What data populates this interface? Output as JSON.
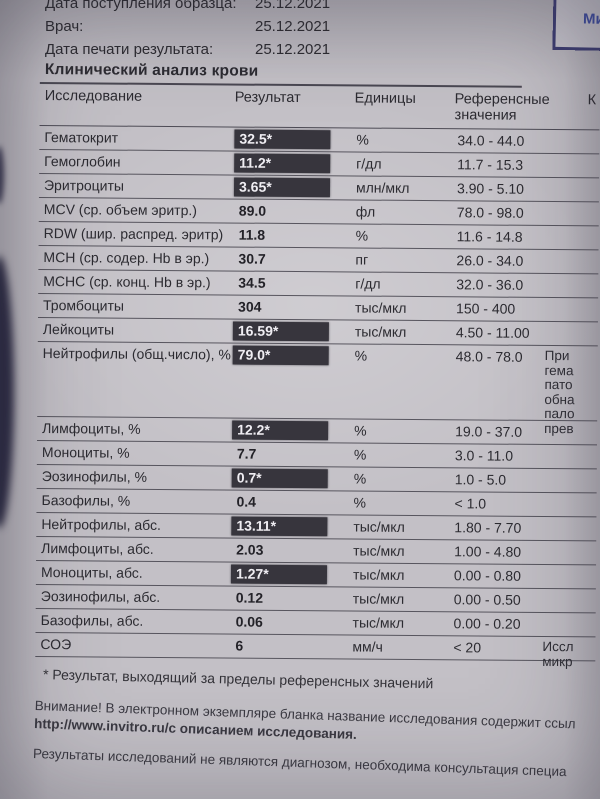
{
  "header": {
    "meta": [
      {
        "label": "Дата поступления образца:",
        "value": "25.12.2021"
      },
      {
        "label": "Врач:",
        "value": "25.12.2021"
      },
      {
        "label": "Дата печати результата:",
        "value": "25.12.2021"
      }
    ],
    "stamp_text": "Ми"
  },
  "report": {
    "title": "Клинический анализ крови",
    "columns": [
      "Исследование",
      "Результат",
      "Единицы",
      "Референсные значения",
      "К"
    ],
    "rows": [
      {
        "name": "Гематокрит",
        "result": "32.5*",
        "flagged": true,
        "units": "%",
        "ref": "34.0 - 44.0"
      },
      {
        "name": "Гемоглобин",
        "result": "11.2*",
        "flagged": true,
        "units": "г/дл",
        "ref": "11.7 - 15.3"
      },
      {
        "name": "Эритроциты",
        "result": "3.65*",
        "flagged": true,
        "units": "млн/мкл",
        "ref": "3.90 - 5.10"
      },
      {
        "name": "MCV (ср. объем эритр.)",
        "result": "89.0",
        "flagged": false,
        "units": "фл",
        "ref": "78.0 - 98.0"
      },
      {
        "name": "RDW (шир. распред. эритр)",
        "result": "11.8",
        "flagged": false,
        "units": "%",
        "ref": "11.6 - 14.8"
      },
      {
        "name": "MCH (ср. содер. Hb в эр.)",
        "result": "30.7",
        "flagged": false,
        "units": "пг",
        "ref": "26.0 - 34.0"
      },
      {
        "name": "MCHC (ср. конц. Hb в эр.)",
        "result": "34.5",
        "flagged": false,
        "units": "г/дл",
        "ref": "32.0 - 36.0"
      },
      {
        "name": "Тромбоциты",
        "result": "304",
        "flagged": false,
        "units": "тыс/мкл",
        "ref": "150 - 400"
      },
      {
        "name": "Лейкоциты",
        "result": "16.59*",
        "flagged": true,
        "units": "тыс/мкл",
        "ref": "4.50 - 11.00"
      },
      {
        "name": "Нейтрофилы (общ.число), %",
        "result": "79.0*",
        "flagged": true,
        "units": "%",
        "ref": "48.0 - 78.0",
        "tall": true,
        "comment_lines": [
          "При",
          "гема",
          "пато",
          "обна",
          "пало",
          "прев"
        ]
      },
      {
        "name": "Лимфоциты, %",
        "result": "12.2*",
        "flagged": true,
        "units": "%",
        "ref": "19.0 - 37.0"
      },
      {
        "name": "Моноциты, %",
        "result": "7.7",
        "flagged": false,
        "units": "%",
        "ref": "3.0 - 11.0"
      },
      {
        "name": "Эозинофилы, %",
        "result": "0.7*",
        "flagged": true,
        "units": "%",
        "ref": "1.0 - 5.0"
      },
      {
        "name": "Базофилы, %",
        "result": "0.4",
        "flagged": false,
        "units": "%",
        "ref": "< 1.0"
      },
      {
        "name": "Нейтрофилы, абс.",
        "result": "13.11*",
        "flagged": true,
        "units": "тыс/мкл",
        "ref": "1.80 - 7.70"
      },
      {
        "name": "Лимфоциты, абс.",
        "result": "2.03",
        "flagged": false,
        "units": "тыс/мкл",
        "ref": "1.00 - 4.80"
      },
      {
        "name": "Моноциты, абс.",
        "result": "1.27*",
        "flagged": true,
        "units": "тыс/мкл",
        "ref": "0.00 - 0.80"
      },
      {
        "name": "Эозинофилы, абс.",
        "result": "0.12",
        "flagged": false,
        "units": "тыс/мкл",
        "ref": "0.00 - 0.50"
      },
      {
        "name": "Базофилы, абс.",
        "result": "0.06",
        "flagged": false,
        "units": "тыс/мкл",
        "ref": "0.00 - 0.20"
      },
      {
        "name": "СОЭ",
        "result": "6",
        "flagged": false,
        "units": "мм/ч",
        "ref": "< 20",
        "comment_lines": [
          "Иссл",
          "микр"
        ]
      }
    ]
  },
  "footer": {
    "flag_note": "* Результат, выходящий за пределы референсных значений",
    "attention_line1": "Внимание! В электронном экземпляре бланка название исследования содержит ссыл",
    "attention_line2": "http://www.invitro.ru/с описанием исследования.",
    "disclaimer": "Результаты исследований не являются диагнозом, необходима консультация специа"
  },
  "colors": {
    "paper": "#c3c0c6",
    "ink": "#2c2b31",
    "flag_bg": "#37353d",
    "flag_text": "#f0eef3",
    "stamp_blue": "#3c4a9e",
    "row_line": "#57555e"
  }
}
